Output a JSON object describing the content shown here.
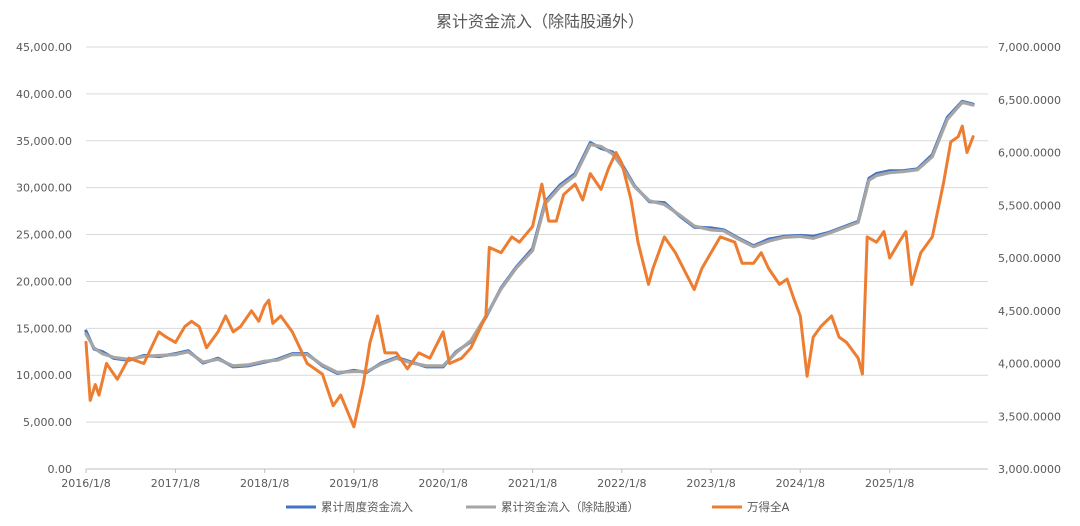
{
  "chart_data": {
    "type": "line",
    "title": "累计资金流入（除陆股通外）",
    "x_ticks": [
      "2016/1/8",
      "2017/1/8",
      "2018/1/8",
      "2019/1/8",
      "2020/1/8",
      "2021/1/8",
      "2022/1/8",
      "2023/1/8",
      "2024/1/8",
      "2025/1/8"
    ],
    "x_range": [
      "2016/1/8",
      "2025/12/31"
    ],
    "y_left": {
      "range": [
        0,
        45000
      ],
      "ticks": [
        "0.00",
        "5,000.00",
        "10,000.00",
        "15,000.00",
        "20,000.00",
        "25,000.00",
        "30,000.00",
        "35,000.00",
        "40,000.00",
        "45,000.00"
      ]
    },
    "y_right": {
      "range": [
        3000,
        7000
      ],
      "ticks": [
        "3,000.0000",
        "3,500.0000",
        "4,000.0000",
        "4,500.0000",
        "5,000.0000",
        "5,500.0000",
        "6,000.0000",
        "6,500.0000",
        "7,000.0000"
      ]
    },
    "grid": true,
    "legend_position": "bottom",
    "series": [
      {
        "name": "累计周度资金流入",
        "axis": "left",
        "color": "#4472C4",
        "points": [
          [
            "2016/1/8",
            14700
          ],
          [
            "2016/2/10",
            12800
          ],
          [
            "2016/3/15",
            12500
          ],
          [
            "2016/5/1",
            11800
          ],
          [
            "2016/7/1",
            11600
          ],
          [
            "2016/9/1",
            12100
          ],
          [
            "2016/11/1",
            12000
          ],
          [
            "2017/1/8",
            12300
          ],
          [
            "2017/3/1",
            12600
          ],
          [
            "2017/5/1",
            11300
          ],
          [
            "2017/7/1",
            11800
          ],
          [
            "2017/9/1",
            10900
          ],
          [
            "2017/11/1",
            11000
          ],
          [
            "2018/1/8",
            11400
          ],
          [
            "2018/3/1",
            11700
          ],
          [
            "2018/5/1",
            12300
          ],
          [
            "2018/7/1",
            12300
          ],
          [
            "2018/9/1",
            11000
          ],
          [
            "2018/11/1",
            10200
          ],
          [
            "2019/1/8",
            10500
          ],
          [
            "2019/3/1",
            10300
          ],
          [
            "2019/5/1",
            11300
          ],
          [
            "2019/7/1",
            11900
          ],
          [
            "2019/9/1",
            11400
          ],
          [
            "2019/11/1",
            10900
          ],
          [
            "2020/1/8",
            10900
          ],
          [
            "2020/3/1",
            12500
          ],
          [
            "2020/5/1",
            13600
          ],
          [
            "2020/7/1",
            16200
          ],
          [
            "2020/9/1",
            19300
          ],
          [
            "2020/11/1",
            21500
          ],
          [
            "2021/1/8",
            23500
          ],
          [
            "2021/3/1",
            28500
          ],
          [
            "2021/5/1",
            30300
          ],
          [
            "2021/7/1",
            31500
          ],
          [
            "2021/9/1",
            34800
          ],
          [
            "2021/10/15",
            34200
          ],
          [
            "2021/12/1",
            33800
          ],
          [
            "2022/1/8",
            32500
          ],
          [
            "2022/3/1",
            30200
          ],
          [
            "2022/5/1",
            28500
          ],
          [
            "2022/7/1",
            28400
          ],
          [
            "2022/9/1",
            27000
          ],
          [
            "2022/11/1",
            25800
          ],
          [
            "2023/1/8",
            25700
          ],
          [
            "2023/3/1",
            25500
          ],
          [
            "2023/5/1",
            24600
          ],
          [
            "2023/7/1",
            23800
          ],
          [
            "2023/9/1",
            24500
          ],
          [
            "2023/11/1",
            24800
          ],
          [
            "2024/1/8",
            24900
          ],
          [
            "2024/3/1",
            24800
          ],
          [
            "2024/5/1",
            25200
          ],
          [
            "2024/7/1",
            25800
          ],
          [
            "2024/9/1",
            26400
          ],
          [
            "2024/10/15",
            31000
          ],
          [
            "2024/11/15",
            31500
          ],
          [
            "2025/1/8",
            31800
          ],
          [
            "2025/3/1",
            31800
          ],
          [
            "2025/5/1",
            32000
          ],
          [
            "2025/7/1",
            33500
          ],
          [
            "2025/9/1",
            37500
          ],
          [
            "2025/11/1",
            39200
          ],
          [
            "2025/12/15",
            38900
          ]
        ]
      },
      {
        "name": "累计资金流入（除陆股通）",
        "axis": "left",
        "color": "#A5A5A5",
        "points": [
          [
            "2016/1/8",
            14400
          ],
          [
            "2016/2/10",
            12900
          ],
          [
            "2016/3/15",
            12300
          ],
          [
            "2016/5/1",
            11900
          ],
          [
            "2016/7/1",
            11700
          ],
          [
            "2016/9/1",
            12000
          ],
          [
            "2016/11/1",
            12100
          ],
          [
            "2017/1/8",
            12200
          ],
          [
            "2017/3/1",
            12500
          ],
          [
            "2017/5/1",
            11400
          ],
          [
            "2017/7/1",
            11700
          ],
          [
            "2017/9/1",
            11000
          ],
          [
            "2017/11/1",
            11100
          ],
          [
            "2018/1/8",
            11500
          ],
          [
            "2018/3/1",
            11600
          ],
          [
            "2018/5/1",
            12200
          ],
          [
            "2018/7/1",
            12200
          ],
          [
            "2018/9/1",
            11100
          ],
          [
            "2018/11/1",
            10300
          ],
          [
            "2019/1/8",
            10400
          ],
          [
            "2019/3/1",
            10400
          ],
          [
            "2019/5/1",
            11200
          ],
          [
            "2019/7/1",
            11800
          ],
          [
            "2019/9/1",
            11300
          ],
          [
            "2019/11/1",
            11000
          ],
          [
            "2020/1/8",
            11000
          ],
          [
            "2020/3/1",
            12400
          ],
          [
            "2020/5/1",
            13700
          ],
          [
            "2020/7/1",
            16300
          ],
          [
            "2020/9/1",
            19200
          ],
          [
            "2020/11/1",
            21400
          ],
          [
            "2021/1/8",
            23300
          ],
          [
            "2021/3/1",
            28300
          ],
          [
            "2021/5/1",
            30100
          ],
          [
            "2021/7/1",
            31300
          ],
          [
            "2021/9/1",
            34600
          ],
          [
            "2021/10/15",
            34400
          ],
          [
            "2021/12/1",
            33600
          ],
          [
            "2022/1/8",
            32300
          ],
          [
            "2022/3/1",
            30100
          ],
          [
            "2022/5/1",
            28600
          ],
          [
            "2022/7/1",
            28200
          ],
          [
            "2022/9/1",
            27100
          ],
          [
            "2022/11/1",
            25900
          ],
          [
            "2023/1/8",
            25500
          ],
          [
            "2023/3/1",
            25400
          ],
          [
            "2023/5/1",
            24500
          ],
          [
            "2023/7/1",
            23700
          ],
          [
            "2023/9/1",
            24300
          ],
          [
            "2023/11/1",
            24700
          ],
          [
            "2024/1/8",
            24800
          ],
          [
            "2024/3/1",
            24600
          ],
          [
            "2024/5/1",
            25100
          ],
          [
            "2024/7/1",
            25700
          ],
          [
            "2024/9/1",
            26300
          ],
          [
            "2024/10/15",
            30800
          ],
          [
            "2024/11/15",
            31300
          ],
          [
            "2025/1/8",
            31600
          ],
          [
            "2025/3/1",
            31700
          ],
          [
            "2025/5/1",
            31900
          ],
          [
            "2025/7/1",
            33300
          ],
          [
            "2025/9/1",
            37300
          ],
          [
            "2025/11/1",
            39100
          ],
          [
            "2025/12/15",
            38800
          ]
        ]
      },
      {
        "name": "万得全A",
        "axis": "right",
        "color": "#ED7D31",
        "points": [
          [
            "2016/1/8",
            4200
          ],
          [
            "2016/1/25",
            3650
          ],
          [
            "2016/2/15",
            3800
          ],
          [
            "2016/3/1",
            3700
          ],
          [
            "2016/4/1",
            4000
          ],
          [
            "2016/5/15",
            3850
          ],
          [
            "2016/7/1",
            4050
          ],
          [
            "2016/9/1",
            4000
          ],
          [
            "2016/11/1",
            4300
          ],
          [
            "2016/12/1",
            4250
          ],
          [
            "2017/1/8",
            4200
          ],
          [
            "2017/2/15",
            4350
          ],
          [
            "2017/3/15",
            4400
          ],
          [
            "2017/4/15",
            4350
          ],
          [
            "2017/5/15",
            4150
          ],
          [
            "2017/7/1",
            4300
          ],
          [
            "2017/8/1",
            4450
          ],
          [
            "2017/9/1",
            4300
          ],
          [
            "2017/10/1",
            4350
          ],
          [
            "2017/11/15",
            4500
          ],
          [
            "2017/12/15",
            4400
          ],
          [
            "2018/1/8",
            4550
          ],
          [
            "2018/1/25",
            4600
          ],
          [
            "2018/2/10",
            4380
          ],
          [
            "2018/3/15",
            4450
          ],
          [
            "2018/5/1",
            4300
          ],
          [
            "2018/7/1",
            4000
          ],
          [
            "2018/9/1",
            3900
          ],
          [
            "2018/10/15",
            3600
          ],
          [
            "2018/11/15",
            3700
          ],
          [
            "2019/1/8",
            3400
          ],
          [
            "2019/2/15",
            3800
          ],
          [
            "2019/3/15",
            4200
          ],
          [
            "2019/4/15",
            4450
          ],
          [
            "2019/5/15",
            4100
          ],
          [
            "2019/7/1",
            4100
          ],
          [
            "2019/8/15",
            3950
          ],
          [
            "2019/10/1",
            4100
          ],
          [
            "2019/11/15",
            4050
          ],
          [
            "2020/1/8",
            4300
          ],
          [
            "2020/2/3",
            4000
          ],
          [
            "2020/3/23",
            4050
          ],
          [
            "2020/5/1",
            4150
          ],
          [
            "2020/7/1",
            4450
          ],
          [
            "2020/7/15",
            5100
          ],
          [
            "2020/9/1",
            5050
          ],
          [
            "2020/10/15",
            5200
          ],
          [
            "2020/11/15",
            5150
          ],
          [
            "2021/1/8",
            5300
          ],
          [
            "2021/2/15",
            5700
          ],
          [
            "2021/3/15",
            5350
          ],
          [
            "2021/4/15",
            5350
          ],
          [
            "2021/5/15",
            5600
          ],
          [
            "2021/7/1",
            5700
          ],
          [
            "2021/8/1",
            5550
          ],
          [
            "2021/9/1",
            5800
          ],
          [
            "2021/10/15",
            5650
          ],
          [
            "2021/11/15",
            5850
          ],
          [
            "2021/12/15",
            6000
          ],
          [
            "2022/1/8",
            5900
          ],
          [
            "2022/2/15",
            5550
          ],
          [
            "2022/3/15",
            5150
          ],
          [
            "2022/4/27",
            4750
          ],
          [
            "2022/5/15",
            4900
          ],
          [
            "2022/7/1",
            5200
          ],
          [
            "2022/8/15",
            5050
          ],
          [
            "2022/10/31",
            4700
          ],
          [
            "2022/12/1",
            4900
          ],
          [
            "2023/1/8",
            5050
          ],
          [
            "2023/2/15",
            5200
          ],
          [
            "2023/4/15",
            5150
          ],
          [
            "2023/5/15",
            4950
          ],
          [
            "2023/7/1",
            4950
          ],
          [
            "2023/8/1",
            5050
          ],
          [
            "2023/9/1",
            4900
          ],
          [
            "2023/10/15",
            4750
          ],
          [
            "2023/11/15",
            4800
          ],
          [
            "2023/12/15",
            4600
          ],
          [
            "2024/1/8",
            4450
          ],
          [
            "2024/2/5",
            3880
          ],
          [
            "2024/3/1",
            4250
          ],
          [
            "2024/4/1",
            4350
          ],
          [
            "2024/5/15",
            4450
          ],
          [
            "2024/6/15",
            4250
          ],
          [
            "2024/7/15",
            4200
          ],
          [
            "2024/9/1",
            4050
          ],
          [
            "2024/9/18",
            3900
          ],
          [
            "2024/10/8",
            5200
          ],
          [
            "2024/11/15",
            5150
          ],
          [
            "2024/12/15",
            5250
          ],
          [
            "2025/1/8",
            5000
          ],
          [
            "2025/2/15",
            5150
          ],
          [
            "2025/3/15",
            5250
          ],
          [
            "2025/4/8",
            4750
          ],
          [
            "2025/5/15",
            5050
          ],
          [
            "2025/7/1",
            5200
          ],
          [
            "2025/8/15",
            5700
          ],
          [
            "2025/9/15",
            6100
          ],
          [
            "2025/10/15",
            6150
          ],
          [
            "2025/11/1",
            6250
          ],
          [
            "2025/11/20",
            6000
          ],
          [
            "2025/12/15",
            6150
          ]
        ]
      }
    ]
  }
}
